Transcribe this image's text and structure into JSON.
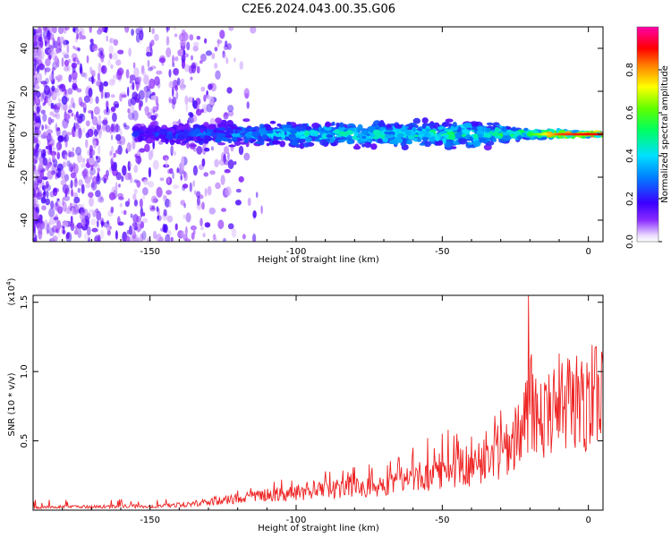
{
  "title": "C2E6.2024.043.00.35.G06",
  "colors": {
    "line": "#ee2222",
    "axis": "#000000",
    "background": "#ffffff"
  },
  "chart_data": [
    {
      "type": "heatmap",
      "xlabel": "Height of straight line (km)",
      "ylabel": "Frequency (Hz)",
      "xlim": [
        -190,
        5
      ],
      "ylim": [
        -50,
        50
      ],
      "x_ticks": [
        -150,
        -100,
        -50,
        0
      ],
      "y_ticks": [
        -40,
        -20,
        0,
        20,
        40
      ],
      "x_tick_labels": [
        "-150",
        "-100",
        "-50",
        "0"
      ],
      "y_tick_labels": [
        "-40",
        "-20",
        "0",
        "20",
        "40"
      ],
      "grid": false,
      "description_of_values": "Doppler frequency band centred near 0 Hz, widening to about ±10 Hz between -150 and -20 km; diffuse low-amplitude noise fills the band below -125 km; strongest amplitude (~0.9) near 0 km",
      "band_center_hz": 0,
      "band_halfwidth_hz": [
        {
          "x": -150,
          "v": 6
        },
        {
          "x": -120,
          "v": 7
        },
        {
          "x": -80,
          "v": 7
        },
        {
          "x": -40,
          "v": 8
        },
        {
          "x": -20,
          "v": 3
        },
        {
          "x": 0,
          "v": 1
        }
      ],
      "band_peak_amplitude": [
        {
          "x": -150,
          "v": 0.25
        },
        {
          "x": -100,
          "v": 0.45
        },
        {
          "x": -50,
          "v": 0.5
        },
        {
          "x": -20,
          "v": 0.55
        },
        {
          "x": -10,
          "v": 0.85
        },
        {
          "x": 0,
          "v": 0.9
        }
      ],
      "colorbar": {
        "label": "Normalized spectral amplitude",
        "ticks": [
          0.0,
          0.2,
          0.4,
          0.6,
          0.8
        ],
        "tick_labels": [
          "0.0",
          "0.2",
          "0.4",
          "0.6",
          "0.8"
        ],
        "range": [
          0,
          1
        ],
        "colormap": "rainbow (violet → blue → cyan → green → yellow → red → magenta)"
      }
    },
    {
      "type": "line",
      "xlabel": "Height of straight line (km)",
      "ylabel": "SNR (10 * v/v)",
      "y_scale_label": "(x10",
      "y_scale_exp": "4",
      "y_scale_close": ")",
      "xlim": [
        -190,
        5
      ],
      "ylim": [
        0,
        1.55
      ],
      "x_ticks": [
        -150,
        -100,
        -50,
        0
      ],
      "y_ticks": [
        0.5,
        1.0,
        1.5
      ],
      "x_tick_labels": [
        "-150",
        "-100",
        "-50",
        "0"
      ],
      "y_tick_labels": [
        "0.5",
        "1.0",
        "1.5"
      ],
      "grid": false,
      "series": [
        {
          "color": "#ee2222",
          "x": [
            -190,
            -180,
            -170,
            -160,
            -150,
            -145,
            -140,
            -135,
            -130,
            -125,
            -120,
            -115,
            -110,
            -105,
            -100,
            -95,
            -90,
            -85,
            -80,
            -75,
            -70,
            -65,
            -60,
            -55,
            -50,
            -45,
            -40,
            -35,
            -30,
            -25,
            -22,
            -20,
            -18,
            -15,
            -12,
            -10,
            -8,
            -5,
            -3,
            0,
            3,
            5
          ],
          "values": [
            0.02,
            0.025,
            0.025,
            0.03,
            0.03,
            0.035,
            0.04,
            0.05,
            0.06,
            0.07,
            0.09,
            0.1,
            0.11,
            0.12,
            0.13,
            0.14,
            0.15,
            0.16,
            0.18,
            0.19,
            0.2,
            0.22,
            0.24,
            0.27,
            0.3,
            0.32,
            0.34,
            0.36,
            0.4,
            0.5,
            0.65,
            0.85,
            0.75,
            0.7,
            0.72,
            0.75,
            0.78,
            0.8,
            0.82,
            0.85,
            0.88,
            0.93
          ]
        }
      ],
      "spikes": {
        "x": [
          -132,
          -120,
          -105,
          -90,
          -80,
          -75,
          -65,
          -60,
          -55,
          -50,
          -48,
          -45,
          -40,
          -35,
          -32,
          -30,
          -28,
          -25,
          -22,
          -20.5,
          -19,
          -18,
          -17,
          -15,
          -13,
          -10,
          -8,
          -5,
          0,
          5
        ],
        "values": [
          0.08,
          0.14,
          0.22,
          0.28,
          0.31,
          0.33,
          0.38,
          0.45,
          0.52,
          0.55,
          0.58,
          0.55,
          0.53,
          0.57,
          0.68,
          0.72,
          0.62,
          0.74,
          0.85,
          1.55,
          0.98,
          0.95,
          0.62,
          0.92,
          0.85,
          1.13,
          0.9,
          0.98,
          0.92,
          1.05
        ]
      }
    }
  ]
}
